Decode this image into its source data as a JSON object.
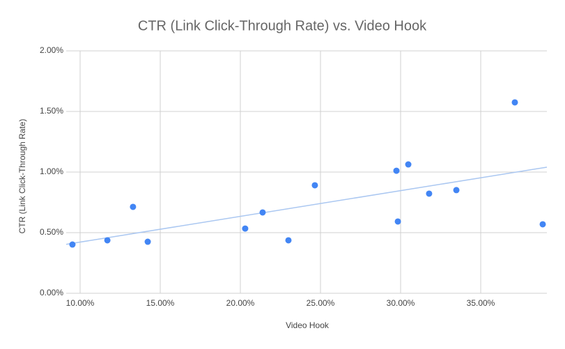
{
  "chart_data": {
    "type": "scatter",
    "title": "CTR (Link Click-Through Rate) vs. Video Hook",
    "x_label": "Video Hook",
    "y_label": "CTR (Link Click-Through Rate)",
    "series": [
      {
        "color": "#4285f4",
        "x": [
          9.52,
          11.7,
          13.3,
          14.22,
          20.3,
          21.39,
          23.0,
          24.65,
          29.74,
          29.83,
          30.48,
          31.78,
          33.48,
          37.13,
          38.87
        ],
        "values": [
          0.402,
          0.437,
          0.713,
          0.425,
          0.534,
          0.667,
          0.437,
          0.891,
          1.011,
          0.592,
          1.063,
          0.822,
          0.851,
          1.575,
          0.569
        ]
      }
    ],
    "trendline": true,
    "trendline_color": "#aac7f1",
    "xlim": [
      9.13,
      39.13
    ],
    "xticks": [
      {
        "value": 10,
        "label": "10.00%"
      },
      {
        "value": 15,
        "label": "15.00%"
      },
      {
        "value": 20,
        "label": "20.00%"
      },
      {
        "value": 25,
        "label": "25.00%"
      },
      {
        "value": 30,
        "label": "30.00%"
      },
      {
        "value": 35,
        "label": "35.00%"
      }
    ],
    "ylim": [
      0,
      2
    ],
    "yticks": [
      {
        "value": 0,
        "label": "0.00%"
      },
      {
        "value": 0.5,
        "label": "0.50%"
      },
      {
        "value": 1,
        "label": "1.00%"
      },
      {
        "value": 1.5,
        "label": "1.50%"
      },
      {
        "value": 2,
        "label": "2.00%"
      }
    ],
    "grid": true
  }
}
